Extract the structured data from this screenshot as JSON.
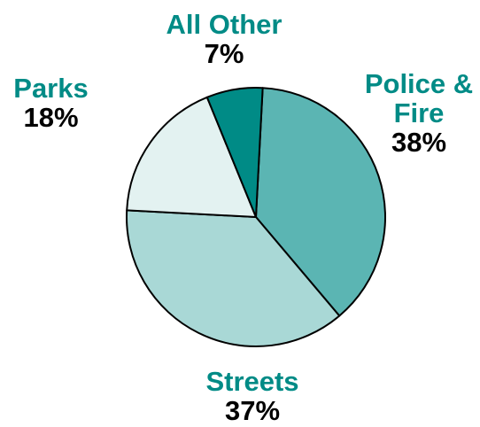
{
  "chart_data": {
    "type": "pie",
    "slices": [
      {
        "label": "Police & Fire",
        "label_lines": [
          "Police &",
          "Fire"
        ],
        "value": 38,
        "display": "38%",
        "color": "#5bb5b3"
      },
      {
        "label": "Streets",
        "label_lines": [
          "Streets"
        ],
        "value": 37,
        "display": "37%",
        "color": "#a9d8d6"
      },
      {
        "label": "Parks",
        "label_lines": [
          "Parks"
        ],
        "value": 18,
        "display": "18%",
        "color": "#e3f2f1"
      },
      {
        "label": "All Other",
        "label_lines": [
          "All Other"
        ],
        "value": 7,
        "display": "7%",
        "color": "#008b86"
      }
    ],
    "label_color": "#008b86",
    "outline_color": "#000000",
    "legend": "none"
  }
}
